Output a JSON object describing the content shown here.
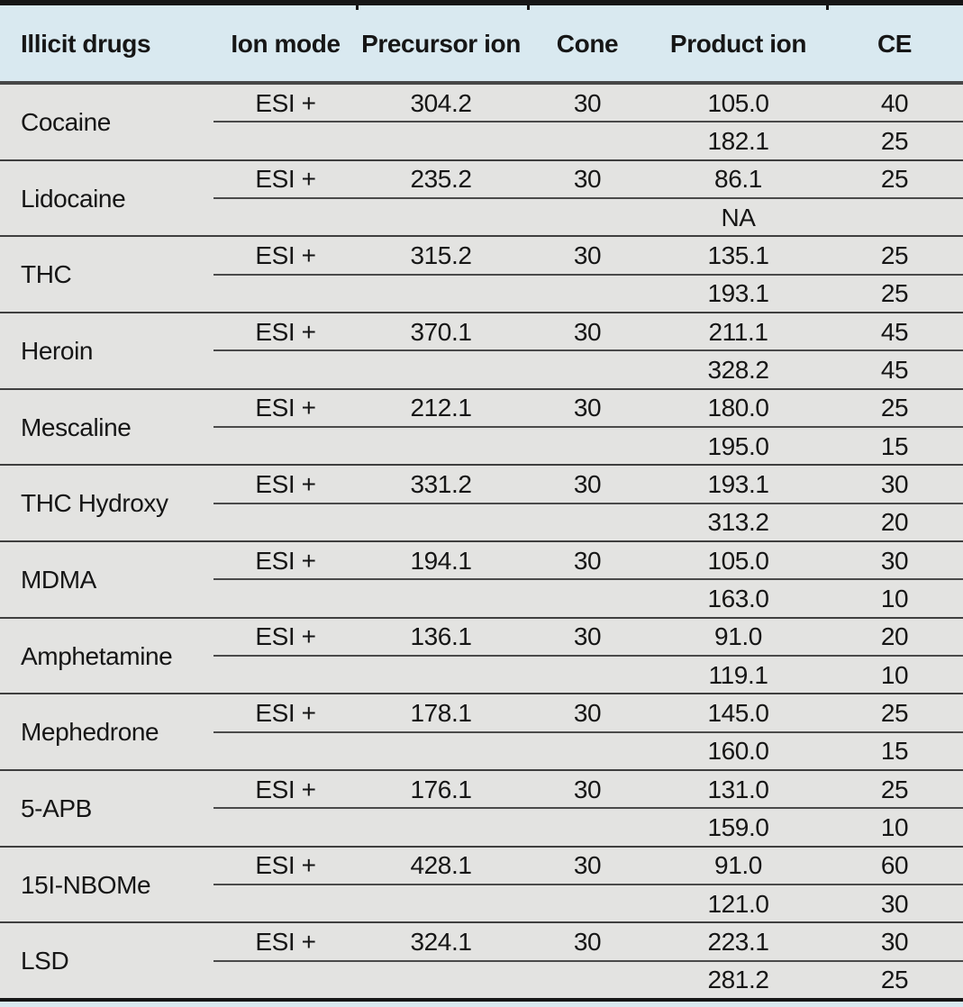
{
  "table": {
    "headers": [
      "Illicit drugs",
      "Ion mode",
      "Precursor ion",
      "Cone",
      "Product ion",
      "CE"
    ],
    "rows": [
      {
        "drug": "Cocaine",
        "ion_mode": "ESI +",
        "precursor_ion": "304.2",
        "cone": "30",
        "transitions": [
          {
            "product_ion": "105.0",
            "ce": "40"
          },
          {
            "product_ion": "182.1",
            "ce": "25"
          }
        ]
      },
      {
        "drug": "Lidocaine",
        "ion_mode": "ESI +",
        "precursor_ion": "235.2",
        "cone": "30",
        "transitions": [
          {
            "product_ion": "86.1",
            "ce": "25"
          },
          {
            "product_ion": "NA",
            "ce": ""
          }
        ]
      },
      {
        "drug": "THC",
        "ion_mode": "ESI +",
        "precursor_ion": "315.2",
        "cone": "30",
        "transitions": [
          {
            "product_ion": "135.1",
            "ce": "25"
          },
          {
            "product_ion": "193.1",
            "ce": "25"
          }
        ]
      },
      {
        "drug": "Heroin",
        "ion_mode": "ESI +",
        "precursor_ion": "370.1",
        "cone": "30",
        "transitions": [
          {
            "product_ion": "211.1",
            "ce": "45"
          },
          {
            "product_ion": "328.2",
            "ce": "45"
          }
        ]
      },
      {
        "drug": "Mescaline",
        "ion_mode": "ESI +",
        "precursor_ion": "212.1",
        "cone": "30",
        "transitions": [
          {
            "product_ion": "180.0",
            "ce": "25"
          },
          {
            "product_ion": "195.0",
            "ce": "15"
          }
        ]
      },
      {
        "drug": "THC Hydroxy",
        "ion_mode": "ESI +",
        "precursor_ion": "331.2",
        "cone": "30",
        "transitions": [
          {
            "product_ion": "193.1",
            "ce": "30"
          },
          {
            "product_ion": "313.2",
            "ce": "20"
          }
        ]
      },
      {
        "drug": "MDMA",
        "ion_mode": "ESI +",
        "precursor_ion": "194.1",
        "cone": "30",
        "transitions": [
          {
            "product_ion": "105.0",
            "ce": "30"
          },
          {
            "product_ion": "163.0",
            "ce": "10"
          }
        ]
      },
      {
        "drug": "Amphetamine",
        "ion_mode": "ESI +",
        "precursor_ion": "136.1",
        "cone": "30",
        "transitions": [
          {
            "product_ion": "91.0",
            "ce": "20"
          },
          {
            "product_ion": "119.1",
            "ce": "10"
          }
        ]
      },
      {
        "drug": "Mephedrone",
        "ion_mode": "ESI +",
        "precursor_ion": "178.1",
        "cone": "30",
        "transitions": [
          {
            "product_ion": "145.0",
            "ce": "25"
          },
          {
            "product_ion": "160.0",
            "ce": "15"
          }
        ]
      },
      {
        "drug": "5-APB",
        "ion_mode": "ESI +",
        "precursor_ion": "176.1",
        "cone": "30",
        "transitions": [
          {
            "product_ion": "131.0",
            "ce": "25"
          },
          {
            "product_ion": "159.0",
            "ce": "10"
          }
        ]
      },
      {
        "drug": "15I-NBOMe",
        "ion_mode": "ESI +",
        "precursor_ion": "428.1",
        "cone": "30",
        "transitions": [
          {
            "product_ion": "91.0",
            "ce": "60"
          },
          {
            "product_ion": "121.0",
            "ce": "30"
          }
        ]
      },
      {
        "drug": "LSD",
        "ion_mode": "ESI +",
        "precursor_ion": "324.1",
        "cone": "30",
        "transitions": [
          {
            "product_ion": "223.1",
            "ce": "30"
          },
          {
            "product_ion": "281.2",
            "ce": "25"
          }
        ]
      }
    ]
  },
  "colors": {
    "header_bg": "#d9e9f0",
    "body_bg": "#e3e3e1",
    "border_dark": "#161616",
    "row_line": "#3f3f3f",
    "text": "#161616"
  }
}
